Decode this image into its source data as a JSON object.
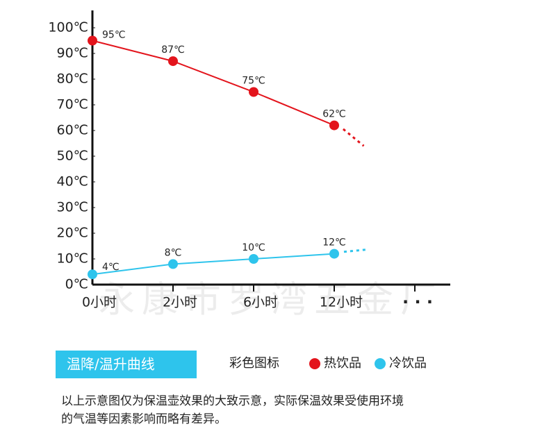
{
  "chart_data": {
    "type": "line",
    "watermark": "永康市罗湾五金厂",
    "categories": [
      "0小时",
      "2小时",
      "6小时",
      "12小时",
      "· · ·"
    ],
    "series": [
      {
        "name": "热饮品",
        "color": "#e3141c",
        "values": [
          95,
          87,
          75,
          62,
          null
        ],
        "value_labels": [
          "95℃",
          "87℃",
          "75℃",
          "62℃",
          null
        ]
      },
      {
        "name": "冷饮品",
        "color": "#2ec4ec",
        "values": [
          4,
          8,
          10,
          12,
          null
        ],
        "value_labels": [
          "4℃",
          "8℃",
          "10℃",
          "12℃",
          null
        ]
      }
    ],
    "ylim": [
      0,
      100
    ],
    "yticks": [
      {
        "value": 0,
        "label": "0℃"
      },
      {
        "value": 10,
        "label": "10℃"
      },
      {
        "value": 20,
        "label": "20℃"
      },
      {
        "value": 30,
        "label": "30℃"
      },
      {
        "value": 40,
        "label": "40℃"
      },
      {
        "value": 50,
        "label": "50℃"
      },
      {
        "value": 60,
        "label": "60℃"
      },
      {
        "value": 70,
        "label": "70℃"
      },
      {
        "value": 80,
        "label": "80℃"
      },
      {
        "value": 90,
        "label": "90℃"
      },
      {
        "value": 100,
        "label": "100℃"
      }
    ],
    "banner": "温降/温升曲线",
    "legend_title": "彩色图标",
    "notes": [
      "以上示意图仅为保温壶效果的大致示意，实际保温效果受使用环境",
      "的气温等因素影响而略有差异。"
    ]
  }
}
